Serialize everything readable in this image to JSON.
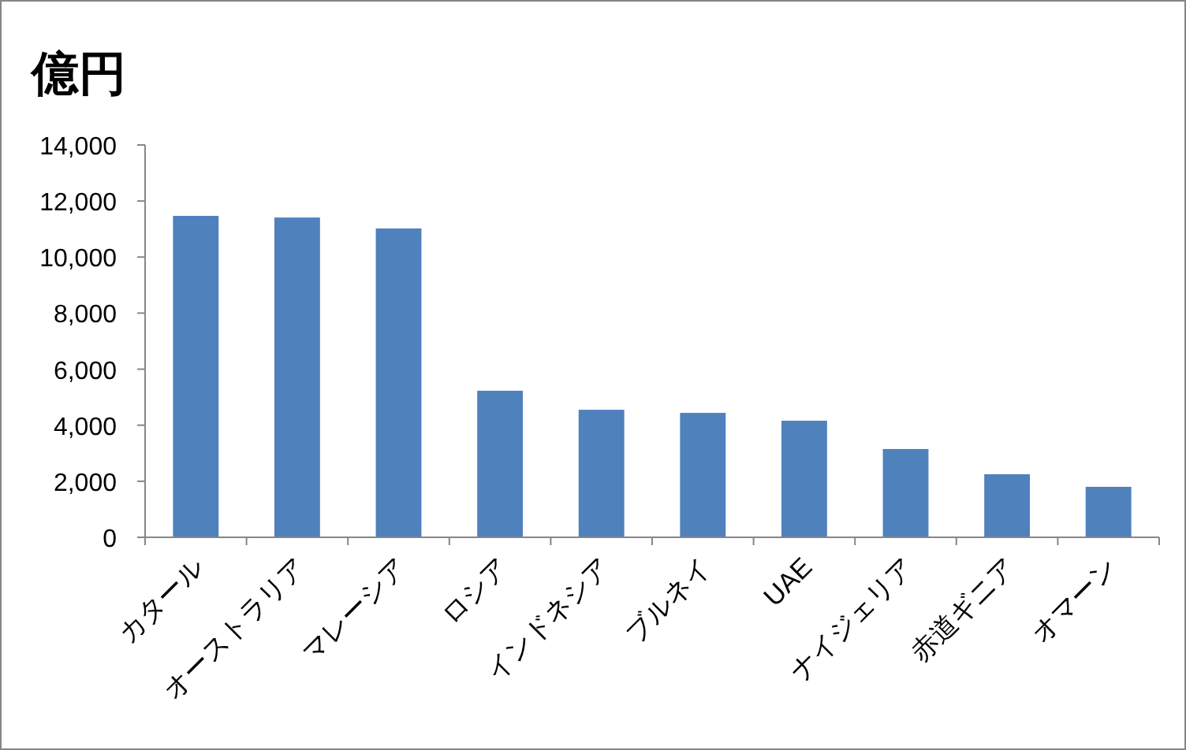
{
  "chart_data": {
    "type": "bar",
    "ylabel": "億円",
    "categories": [
      "カタール",
      "オーストラリア",
      "マレーシア",
      "ロシア",
      "インドネシア",
      "ブルネイ",
      "UAE",
      "ナイジェリア",
      "赤道ギニア",
      "オマーン"
    ],
    "values": [
      11470,
      11410,
      11020,
      5230,
      4550,
      4440,
      4160,
      3150,
      2250,
      1800
    ],
    "color": "#4f81bd",
    "ylim": [
      0,
      14000
    ],
    "yticks": [
      {
        "value": 0,
        "label": "0"
      },
      {
        "value": 2000,
        "label": "2,000"
      },
      {
        "value": 4000,
        "label": "4,000"
      },
      {
        "value": 6000,
        "label": "6,000"
      },
      {
        "value": 8000,
        "label": "8,000"
      },
      {
        "value": 10000,
        "label": "10,000"
      },
      {
        "value": 12000,
        "label": "12,000"
      },
      {
        "value": 14000,
        "label": "14,000"
      }
    ],
    "grid": false
  }
}
